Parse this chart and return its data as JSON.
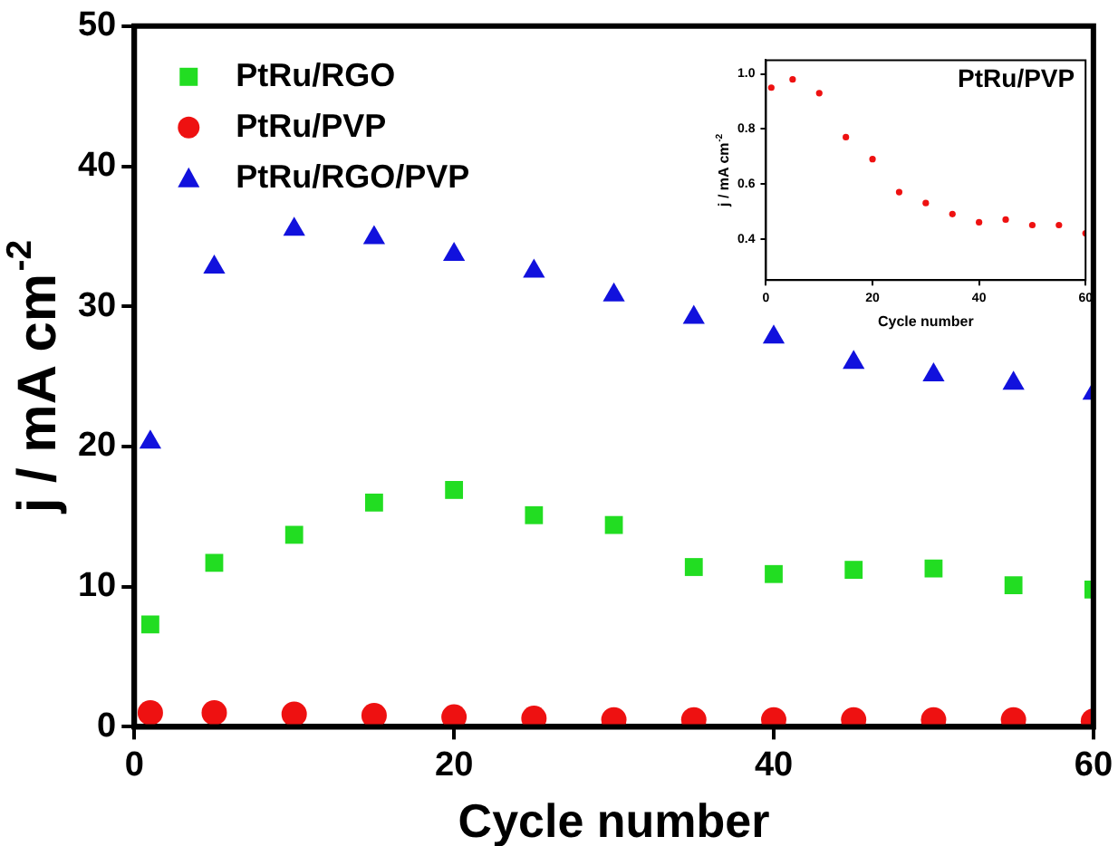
{
  "chart_data": [
    {
      "type": "scatter",
      "xlabel": "Cycle number",
      "ylabel": "j / mA cm$^{-2}$",
      "x": [
        1,
        5,
        10,
        15,
        20,
        25,
        30,
        35,
        40,
        45,
        50,
        55,
        60
      ],
      "series": [
        {
          "name": "PtRu/RGO",
          "color": "#22dd22",
          "marker": "square",
          "values": [
            7.3,
            11.7,
            13.7,
            16,
            16.9,
            15.1,
            14.4,
            11.4,
            10.9,
            11.2,
            11.3,
            10.1,
            9.8
          ]
        },
        {
          "name": "PtRu/PVP",
          "color": "#ee1111",
          "marker": "circle",
          "values": [
            1.0,
            1.0,
            0.9,
            0.8,
            0.7,
            0.6,
            0.5,
            0.5,
            0.5,
            0.5,
            0.5,
            0.5,
            0.4
          ]
        },
        {
          "name": "PtRu/RGO/PVP",
          "color": "#1111dd",
          "marker": "triangle",
          "values": [
            20.3,
            32.8,
            35.5,
            34.9,
            33.7,
            32.5,
            30.8,
            29.2,
            27.8,
            26.0,
            25.1,
            24.5,
            23.8
          ]
        }
      ],
      "xlim": [
        0,
        60
      ],
      "xticks": [
        0,
        20,
        40,
        60
      ],
      "ylim": [
        0,
        50
      ],
      "yticks": [
        0,
        10,
        20,
        30,
        40,
        50
      ],
      "legend": "top left"
    },
    {
      "type": "scatter",
      "title": "PtRu/PVP",
      "xlabel": "Cycle number",
      "ylabel": "j / mA cm$^{-2}$",
      "x": [
        1,
        5,
        10,
        15,
        20,
        25,
        30,
        35,
        40,
        45,
        50,
        55,
        60
      ],
      "series": [
        {
          "color": "#ee1111",
          "marker": "circle",
          "values": [
            0.95,
            0.98,
            0.93,
            0.77,
            0.69,
            0.57,
            0.53,
            0.49,
            0.46,
            0.47,
            0.45,
            0.45,
            0.42
          ]
        }
      ],
      "xlim": [
        0,
        60
      ],
      "xticks": [
        0,
        20,
        40,
        60
      ],
      "ylim": [
        0.25,
        1.05
      ],
      "yticks": [
        0.4,
        0.6,
        0.8,
        {
          "value": 1,
          "label": "1.0"
        }
      ]
    }
  ]
}
